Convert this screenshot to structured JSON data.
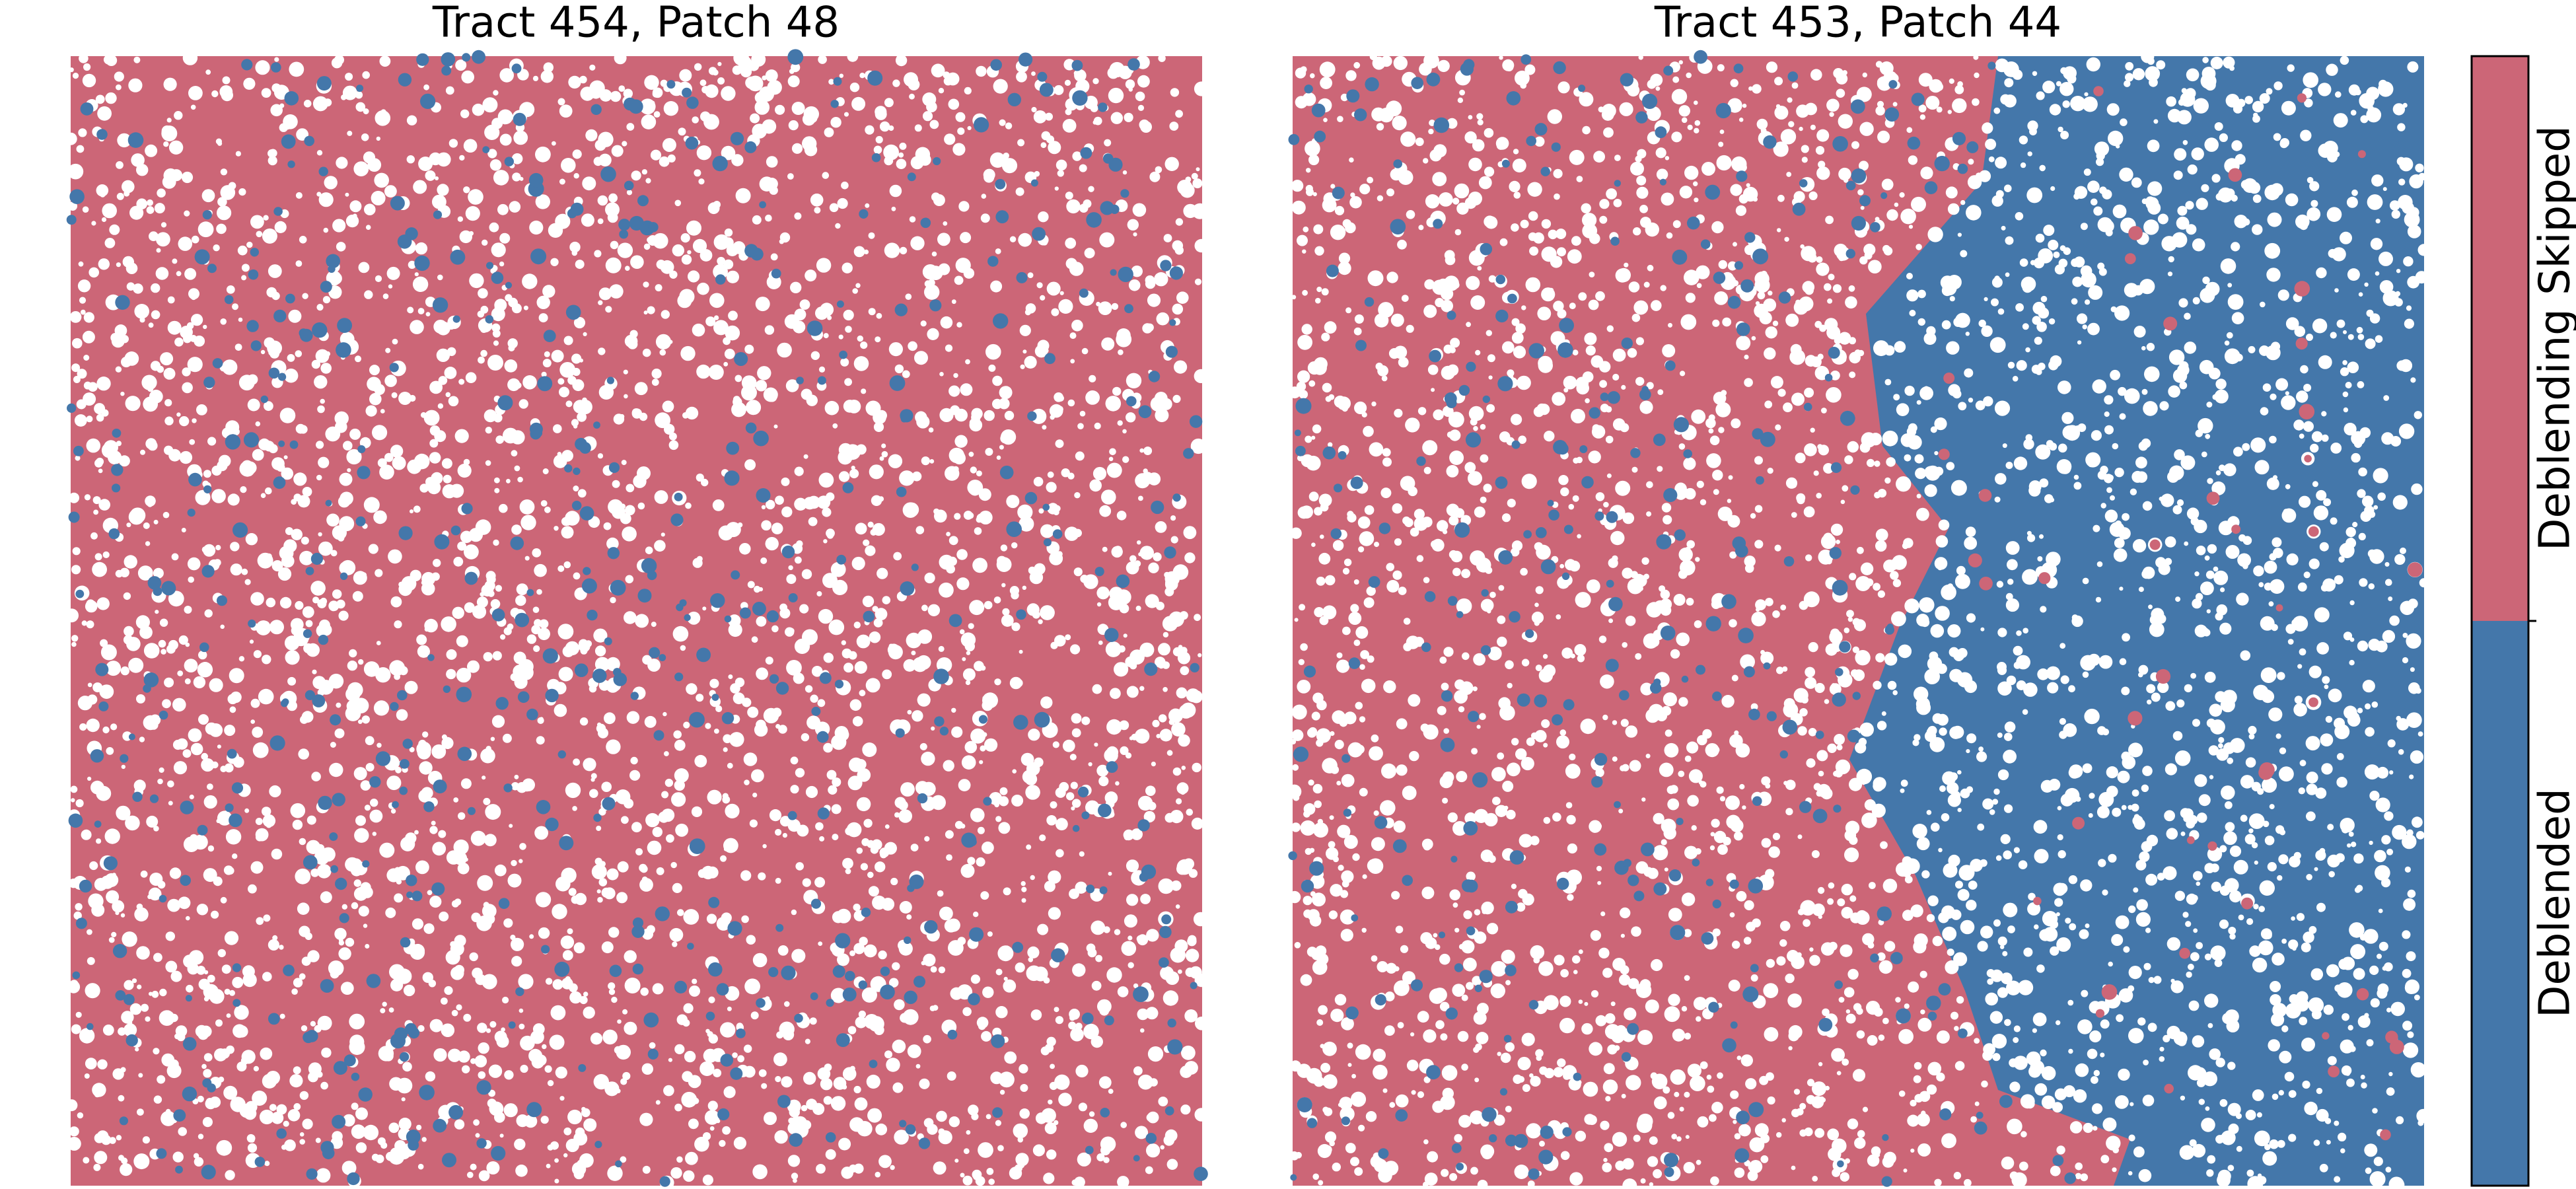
{
  "panels": [
    {
      "title": "Tract 454, Patch 48"
    },
    {
      "title": "Tract 453, Patch 44"
    }
  ],
  "colorbar": {
    "labels": [
      "Deblended",
      "Deblending Skipped"
    ],
    "colors": [
      "#4477aa",
      "#cc6677"
    ]
  }
}
